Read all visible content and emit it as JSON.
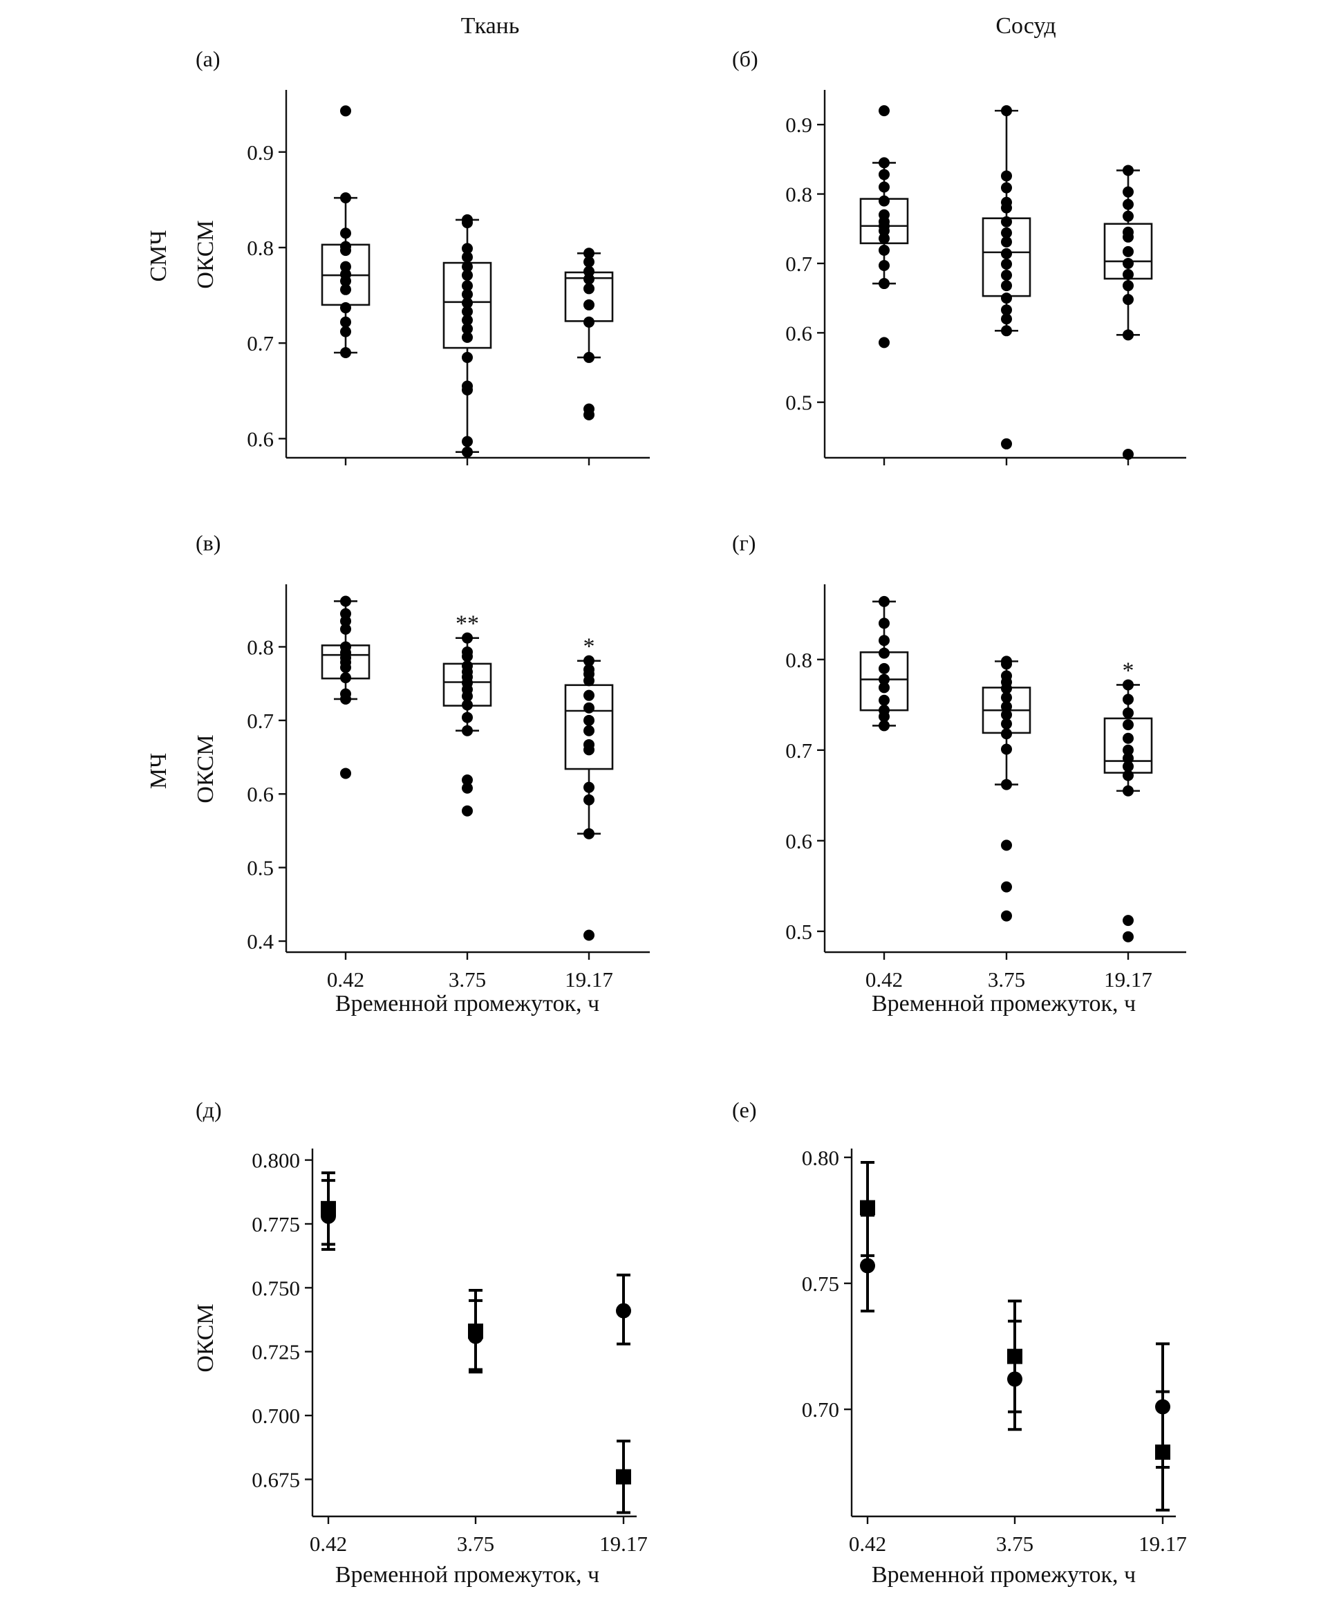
{
  "figure": {
    "column_titles": [
      "Ткань",
      "Сосуд"
    ],
    "row_labels": [
      "СМЧ",
      "МЧ"
    ],
    "ylabel": "ОКСМ",
    "xlabel": "Временной промежуток, ч",
    "colors": {
      "ink": "#111111",
      "marker": "#000000",
      "background": "#ffffff"
    }
  },
  "chart_data": [
    {
      "panel": "(а)",
      "type": "box",
      "categories": [
        "0.42",
        "3.75",
        "19.17"
      ],
      "ylim": [
        0.58,
        0.965
      ],
      "yticks": [
        0.6,
        0.7,
        0.8,
        0.9
      ],
      "boxes": [
        {
          "q1": 0.74,
          "median": 0.771,
          "q3": 0.803,
          "whisker_low": 0.69,
          "whisker_high": 0.852
        },
        {
          "q1": 0.695,
          "median": 0.743,
          "q3": 0.784,
          "whisker_low": 0.586,
          "whisker_high": 0.829
        },
        {
          "q1": 0.723,
          "median": 0.768,
          "q3": 0.774,
          "whisker_low": 0.685,
          "whisker_high": 0.794
        }
      ],
      "points": [
        [
          0.943,
          0.852,
          0.815,
          0.801,
          0.797,
          0.78,
          0.772,
          0.765,
          0.756,
          0.737,
          0.722,
          0.712,
          0.69
        ],
        [
          0.829,
          0.826,
          0.799,
          0.79,
          0.78,
          0.771,
          0.76,
          0.751,
          0.742,
          0.733,
          0.724,
          0.715,
          0.706,
          0.685,
          0.655,
          0.651,
          0.597,
          0.586
        ],
        [
          0.794,
          0.785,
          0.775,
          0.767,
          0.757,
          0.74,
          0.722,
          0.685,
          0.631,
          0.625
        ]
      ]
    },
    {
      "panel": "(б)",
      "type": "box",
      "categories": [
        "0.42",
        "3.75",
        "19.17"
      ],
      "ylim": [
        0.42,
        0.95
      ],
      "yticks": [
        0.5,
        0.6,
        0.7,
        0.8,
        0.9
      ],
      "boxes": [
        {
          "q1": 0.729,
          "median": 0.754,
          "q3": 0.793,
          "whisker_low": 0.671,
          "whisker_high": 0.845
        },
        {
          "q1": 0.653,
          "median": 0.716,
          "q3": 0.765,
          "whisker_low": 0.603,
          "whisker_high": 0.92
        },
        {
          "q1": 0.678,
          "median": 0.703,
          "q3": 0.757,
          "whisker_low": 0.597,
          "whisker_high": 0.834
        }
      ],
      "points": [
        [
          0.92,
          0.845,
          0.828,
          0.81,
          0.79,
          0.77,
          0.76,
          0.754,
          0.747,
          0.736,
          0.719,
          0.697,
          0.671,
          0.586
        ],
        [
          0.92,
          0.826,
          0.809,
          0.788,
          0.78,
          0.76,
          0.744,
          0.731,
          0.714,
          0.699,
          0.683,
          0.668,
          0.65,
          0.633,
          0.62,
          0.603,
          0.44
        ],
        [
          0.834,
          0.803,
          0.785,
          0.768,
          0.745,
          0.738,
          0.717,
          0.7,
          0.684,
          0.668,
          0.648,
          0.597,
          0.425
        ]
      ]
    },
    {
      "panel": "(в)",
      "type": "box",
      "categories": [
        "0.42",
        "3.75",
        "19.17"
      ],
      "ylim": [
        0.385,
        0.885
      ],
      "yticks": [
        0.4,
        0.5,
        0.6,
        0.7,
        0.8
      ],
      "annotations": [
        "",
        "**",
        "*"
      ],
      "boxes": [
        {
          "q1": 0.757,
          "median": 0.789,
          "q3": 0.802,
          "whisker_low": 0.729,
          "whisker_high": 0.862
        },
        {
          "q1": 0.72,
          "median": 0.752,
          "q3": 0.777,
          "whisker_low": 0.686,
          "whisker_high": 0.812
        },
        {
          "q1": 0.634,
          "median": 0.713,
          "q3": 0.748,
          "whisker_low": 0.546,
          "whisker_high": 0.781
        }
      ],
      "points": [
        [
          0.862,
          0.845,
          0.835,
          0.824,
          0.8,
          0.792,
          0.785,
          0.779,
          0.772,
          0.758,
          0.736,
          0.729,
          0.628
        ],
        [
          0.812,
          0.793,
          0.787,
          0.774,
          0.766,
          0.759,
          0.751,
          0.742,
          0.733,
          0.721,
          0.704,
          0.686,
          0.619,
          0.608,
          0.577
        ],
        [
          0.781,
          0.769,
          0.763,
          0.754,
          0.734,
          0.717,
          0.7,
          0.686,
          0.667,
          0.66,
          0.609,
          0.592,
          0.546,
          0.408
        ]
      ]
    },
    {
      "panel": "(г)",
      "type": "box",
      "categories": [
        "0.42",
        "3.75",
        "19.17"
      ],
      "ylim": [
        0.477,
        0.883
      ],
      "yticks": [
        0.5,
        0.6,
        0.7,
        0.8
      ],
      "annotations": [
        "",
        "",
        "*"
      ],
      "boxes": [
        {
          "q1": 0.744,
          "median": 0.778,
          "q3": 0.808,
          "whisker_low": 0.727,
          "whisker_high": 0.864
        },
        {
          "q1": 0.719,
          "median": 0.744,
          "q3": 0.769,
          "whisker_low": 0.662,
          "whisker_high": 0.798
        },
        {
          "q1": 0.675,
          "median": 0.688,
          "q3": 0.735,
          "whisker_low": 0.655,
          "whisker_high": 0.772
        }
      ],
      "points": [
        [
          0.864,
          0.84,
          0.821,
          0.807,
          0.79,
          0.778,
          0.769,
          0.755,
          0.744,
          0.737,
          0.727
        ],
        [
          0.798,
          0.795,
          0.782,
          0.775,
          0.768,
          0.758,
          0.748,
          0.739,
          0.729,
          0.718,
          0.701,
          0.662,
          0.595,
          0.549,
          0.517
        ],
        [
          0.772,
          0.756,
          0.741,
          0.728,
          0.713,
          0.7,
          0.691,
          0.682,
          0.672,
          0.655,
          0.512,
          0.494
        ]
      ]
    },
    {
      "panel": "(д)",
      "type": "scatter",
      "categories": [
        "0.42",
        "3.75",
        "19.17"
      ],
      "ylim": [
        0.6605,
        0.8045
      ],
      "yticks": [
        0.675,
        0.7,
        0.725,
        0.75,
        0.775,
        0.8
      ],
      "series": [
        {
          "marker": "circle",
          "values": [
            0.778,
            0.731,
            0.741
          ],
          "err_low": [
            0.765,
            0.718,
            0.728
          ],
          "err_high": [
            0.792,
            0.745,
            0.755
          ]
        },
        {
          "marker": "square",
          "values": [
            0.781,
            0.733,
            0.676
          ],
          "err_low": [
            0.767,
            0.717,
            0.662
          ],
          "err_high": [
            0.795,
            0.749,
            0.69
          ]
        }
      ]
    },
    {
      "panel": "(е)",
      "type": "scatter",
      "categories": [
        "0.42",
        "3.75",
        "19.17"
      ],
      "ylim": [
        0.6575,
        0.8035
      ],
      "yticks": [
        0.7,
        0.75,
        0.8
      ],
      "series": [
        {
          "marker": "circle",
          "values": [
            0.757,
            0.712,
            0.701
          ],
          "err_low": [
            0.739,
            0.692,
            0.677
          ],
          "err_high": [
            0.777,
            0.735,
            0.726
          ]
        },
        {
          "marker": "square",
          "values": [
            0.78,
            0.721,
            0.683
          ],
          "err_low": [
            0.761,
            0.699,
            0.66
          ],
          "err_high": [
            0.798,
            0.743,
            0.707
          ]
        }
      ]
    }
  ]
}
